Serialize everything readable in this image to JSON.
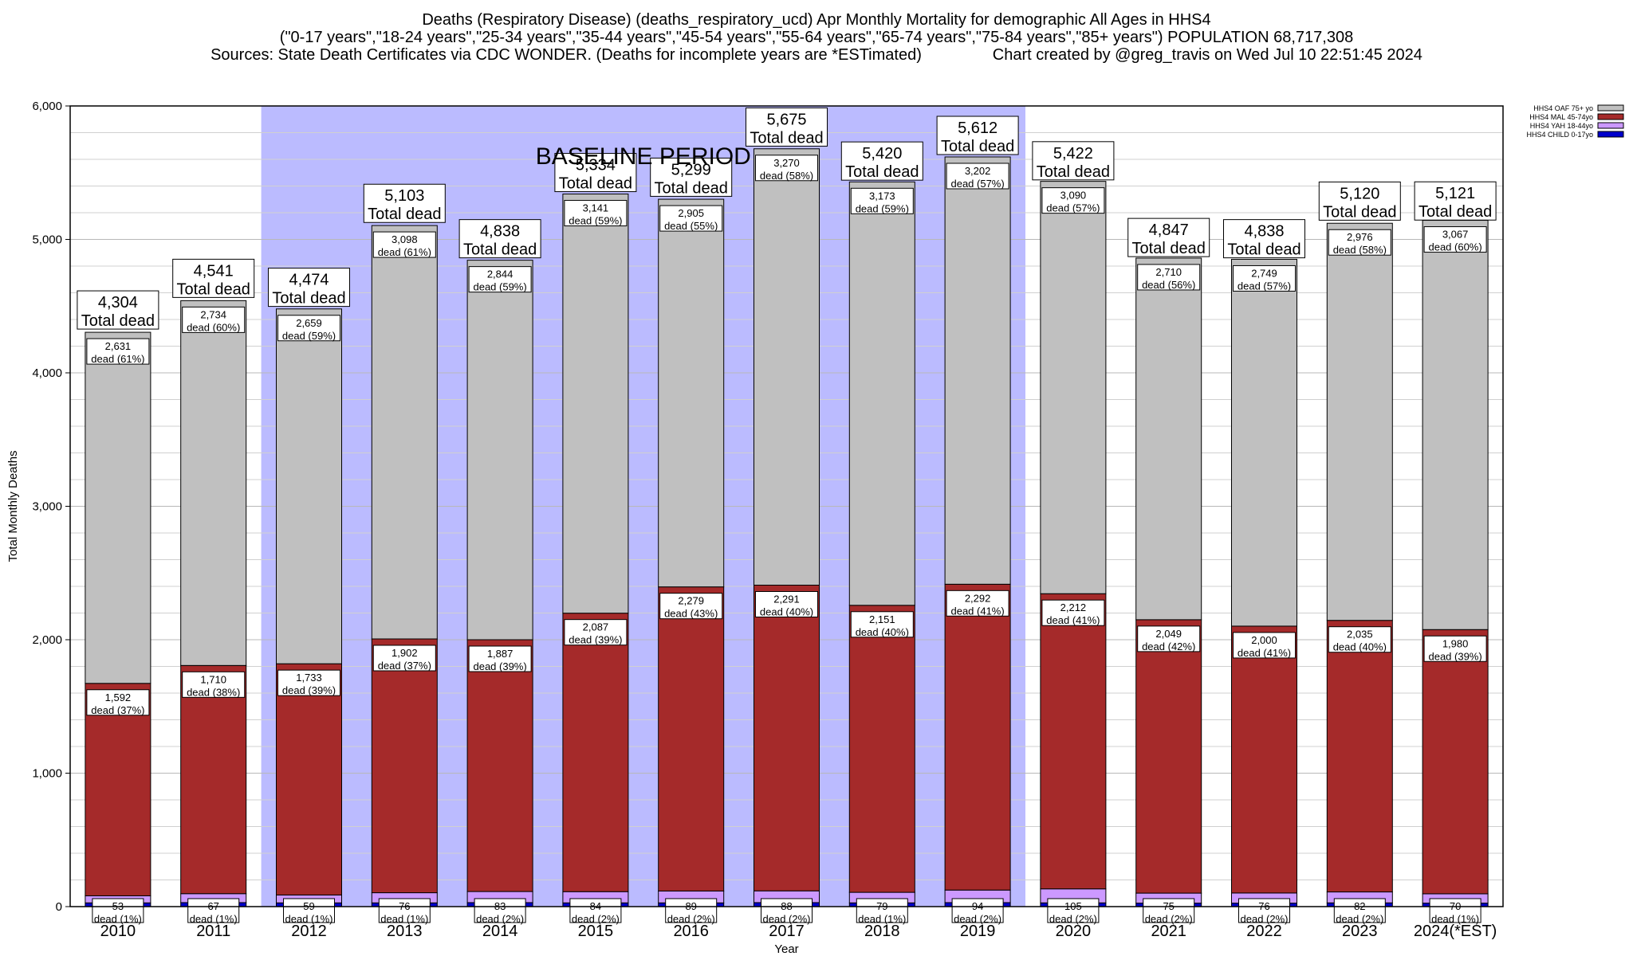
{
  "title_lines": [
    "Deaths (Respiratory Disease) (deaths_respiratory_ucd) Apr Monthly Mortality for demographic All Ages in HHS4",
    "(\"0-17 years\",\"18-24 years\",\"25-34 years\",\"35-44 years\",\"45-54 years\",\"55-64 years\",\"65-74 years\",\"75-84 years\",\"85+ years\") POPULATION 68,717,308",
    "Sources: State Death Certificates via CDC WONDER. (Deaths for incomplete years are *ESTimated)                Chart created by @greg_travis on Wed Jul 10 22:51:45 2024"
  ],
  "colors": {
    "child": "#0000cc",
    "yah": "#cc99ff",
    "mal": "#a52a2a",
    "oaf": "#c0c0c0",
    "baseline": "#bbbbff",
    "grid": "#d0d0d0"
  },
  "chart_data": {
    "type": "bar",
    "stacked": true,
    "xlabel": "Year",
    "ylabel": "Total Monthly Deaths",
    "ylim": [
      0,
      6000
    ],
    "yticks": [
      "0",
      "1,000",
      "2,000",
      "3,000",
      "4,000",
      "5,000",
      "6,000"
    ],
    "ytick_values": [
      0,
      1000,
      2000,
      3000,
      4000,
      5000,
      6000
    ],
    "categories": [
      "2010",
      "2011",
      "2012",
      "2013",
      "2014",
      "2015",
      "2016",
      "2017",
      "2018",
      "2019",
      "2020",
      "2021",
      "2022",
      "2023",
      "2024(*EST)"
    ],
    "baseline": {
      "label": "BASELINE PERIOD",
      "start": "2012",
      "end": "2019"
    },
    "series": [
      {
        "name": "HHS4 CHILD 0-17yo",
        "key": "child",
        "values": [
          28,
          30,
          28,
          28,
          30,
          28,
          28,
          30,
          28,
          30,
          28,
          26,
          26,
          28,
          26
        ]
      },
      {
        "name": "HHS4 YAH 18-44yo",
        "key": "yah",
        "values": [
          53,
          67,
          59,
          76,
          83,
          84,
          89,
          88,
          79,
          94,
          105,
          75,
          76,
          82,
          70
        ],
        "value_labels": [
          "53",
          "67",
          "59",
          "76",
          "83",
          "84",
          "89",
          "88",
          "79",
          "94",
          "105",
          "75",
          "76",
          "82",
          "70"
        ],
        "pct_labels": [
          "dead (1%)",
          "dead (1%)",
          "dead (1%)",
          "dead (1%)",
          "dead (2%)",
          "dead (2%)",
          "dead (2%)",
          "dead (2%)",
          "dead (1%)",
          "dead (2%)",
          "dead (2%)",
          "dead (2%)",
          "dead (2%)",
          "dead (2%)",
          "dead (1%)"
        ]
      },
      {
        "name": "HHS4 MAL 45-74yo",
        "key": "mal",
        "values": [
          1592,
          1710,
          1733,
          1902,
          1887,
          2087,
          2279,
          2291,
          2151,
          2292,
          2212,
          2049,
          2000,
          2035,
          1980
        ],
        "value_labels": [
          "1,592",
          "1,710",
          "1,733",
          "1,902",
          "1,887",
          "2,087",
          "2,279",
          "2,291",
          "2,151",
          "2,292",
          "2,212",
          "2,049",
          "2,000",
          "2,035",
          "1,980"
        ],
        "pct_labels": [
          "dead (37%)",
          "dead (38%)",
          "dead (39%)",
          "dead (37%)",
          "dead (39%)",
          "dead (39%)",
          "dead (43%)",
          "dead (40%)",
          "dead (40%)",
          "dead (41%)",
          "dead (41%)",
          "dead (42%)",
          "dead (41%)",
          "dead (40%)",
          "dead (39%)"
        ]
      },
      {
        "name": "HHS4 OAF 75+ yo",
        "key": "oaf",
        "values": [
          2631,
          2734,
          2659,
          3098,
          2844,
          3141,
          2905,
          3270,
          3173,
          3202,
          3090,
          2710,
          2749,
          2976,
          3067
        ],
        "value_labels": [
          "2,631",
          "2,734",
          "2,659",
          "3,098",
          "2,844",
          "3,141",
          "2,905",
          "3,270",
          "3,173",
          "3,202",
          "3,090",
          "2,710",
          "2,749",
          "2,976",
          "3,067"
        ],
        "pct_labels": [
          "dead (61%)",
          "dead (60%)",
          "dead (59%)",
          "dead (61%)",
          "dead (59%)",
          "dead (59%)",
          "dead (55%)",
          "dead (58%)",
          "dead (59%)",
          "dead (57%)",
          "dead (57%)",
          "dead (56%)",
          "dead (57%)",
          "dead (58%)",
          "dead (60%)"
        ]
      }
    ],
    "totals": [
      4304,
      4541,
      4474,
      5103,
      4838,
      5334,
      5299,
      5675,
      5420,
      5612,
      5422,
      4847,
      4838,
      5120,
      5121
    ],
    "total_labels": [
      "4,304",
      "4,541",
      "4,474",
      "5,103",
      "4,838",
      "5,334",
      "5,299",
      "5,675",
      "5,420",
      "5,612",
      "5,422",
      "4,847",
      "4,838",
      "5,120",
      "5,121"
    ],
    "total_suffix": "Total dead",
    "legend_order": [
      "oaf",
      "mal",
      "yah",
      "child"
    ],
    "legend_position": "top-right"
  }
}
